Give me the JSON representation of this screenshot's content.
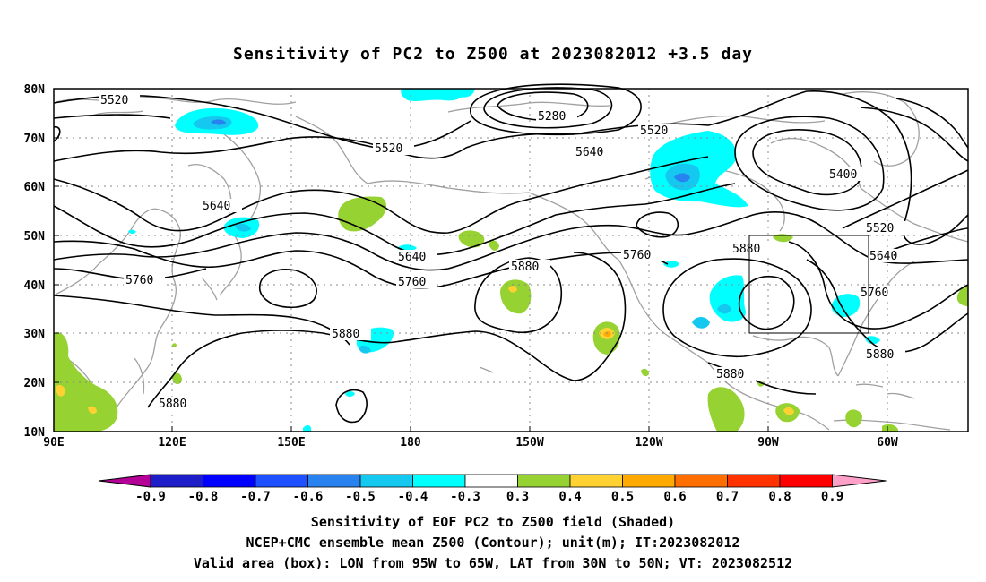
{
  "title": "Sensitivity of PC2 to Z500 at 2023082012 +3.5 day",
  "map": {
    "lon_ticks": [
      "90E",
      "120E",
      "150E",
      "180",
      "150W",
      "120W",
      "90W",
      "60W"
    ],
    "lat_ticks": [
      "80N",
      "70N",
      "60N",
      "50N",
      "40N",
      "30N",
      "20N",
      "10N"
    ],
    "contour_labels": [
      "5520",
      "5520",
      "5520",
      "5520",
      "5280",
      "5400",
      "5640",
      "5640",
      "5640",
      "5640",
      "5760",
      "5760",
      "5760",
      "5760",
      "5880",
      "5880",
      "5880",
      "5880",
      "5880"
    ],
    "valid_box": {
      "lon_from": "95W",
      "lon_to": "65W",
      "lat_from": "30N",
      "lat_to": "50N"
    }
  },
  "colorbar": {
    "labels": [
      "-0.9",
      "-0.8",
      "-0.7",
      "-0.6",
      "-0.5",
      "-0.4",
      "-0.3",
      "0.3",
      "0.4",
      "0.5",
      "0.6",
      "0.7",
      "0.8",
      "0.9"
    ],
    "colors": [
      "#b40096",
      "#1e1ec8",
      "#0000ff",
      "#1e50ff",
      "#2882f0",
      "#14c8f0",
      "#00ffff",
      "#ffffff",
      "#96d232",
      "#ffd232",
      "#ffaa00",
      "#ff6e00",
      "#ff3200",
      "#ff0000",
      "#ffa0c8"
    ]
  },
  "captions": {
    "line1": "Sensitivity of EOF PC2 to Z500 field (Shaded)",
    "line2": "NCEP+CMC ensemble mean Z500 (Contour); unit(m); IT:2023082012",
    "line3": "Valid area (box): LON from 95W to 65W, LAT from 30N to 50N; VT: 2023082512"
  },
  "colors": {
    "cyan": "#00ffff",
    "lightblue": "#14c8f0",
    "blue": "#2882f0",
    "green": "#96d232",
    "yellow": "#ffd232",
    "orange": "#ffaa00",
    "coast": "#a0a0a0"
  }
}
